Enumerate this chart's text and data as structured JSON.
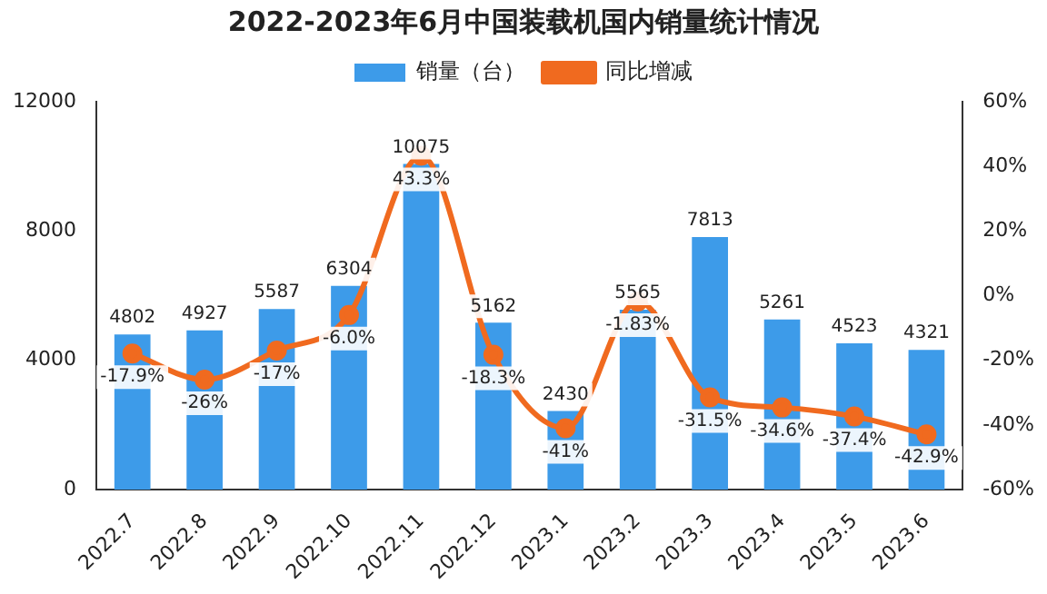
{
  "chart_data": {
    "type": "bar",
    "title": "2022-2023年6月中国装载机国内销量统计情况",
    "categories": [
      "2022.7",
      "2022.8",
      "2022.9",
      "2022.10",
      "2022.11",
      "2022.12",
      "2023.1",
      "2023.2",
      "2023.3",
      "2023.4",
      "2023.5",
      "2023.6"
    ],
    "series": [
      {
        "name": "销量（台）",
        "color": "#3d9be9",
        "values": [
          4802,
          4927,
          5587,
          6304,
          10075,
          5162,
          2430,
          5565,
          7813,
          5261,
          4523,
          4321
        ],
        "value_labels": [
          "4802",
          "4927",
          "5587",
          "6304",
          "10075",
          "5162",
          "2430",
          "5565",
          "7813",
          "5261",
          "4523",
          "4321"
        ]
      },
      {
        "name": "同比增减",
        "type": "line",
        "axis": "y2",
        "color": "#f06a1f",
        "values": [
          -17.9,
          -26,
          -17,
          -6.0,
          43.3,
          -18.3,
          -41,
          -1.83,
          -31.5,
          -34.6,
          -37.4,
          -42.9
        ],
        "value_labels": [
          "-17.9%",
          "-26%",
          "-17%",
          "-6.0%",
          "43.3%",
          "-18.3%",
          "-41%",
          "-1.83%",
          "-31.5%",
          "-34.6%",
          "-37.4%",
          "-42.9%"
        ]
      }
    ],
    "ylim": [
      0,
      12000
    ],
    "yticks": [
      0,
      4000,
      8000,
      12000
    ],
    "y2lim": [
      -60,
      60
    ],
    "y2ticks": [
      {
        "value": -60,
        "label": "-60%"
      },
      {
        "value": -40,
        "label": "-40%"
      },
      {
        "value": -20,
        "label": "-20%"
      },
      {
        "value": 0,
        "label": "0%"
      },
      {
        "value": 20,
        "label": "20%"
      },
      {
        "value": 40,
        "label": "40%"
      },
      {
        "value": 60,
        "label": "60%"
      }
    ],
    "legend": "top",
    "grid": false,
    "marker": "circle"
  }
}
